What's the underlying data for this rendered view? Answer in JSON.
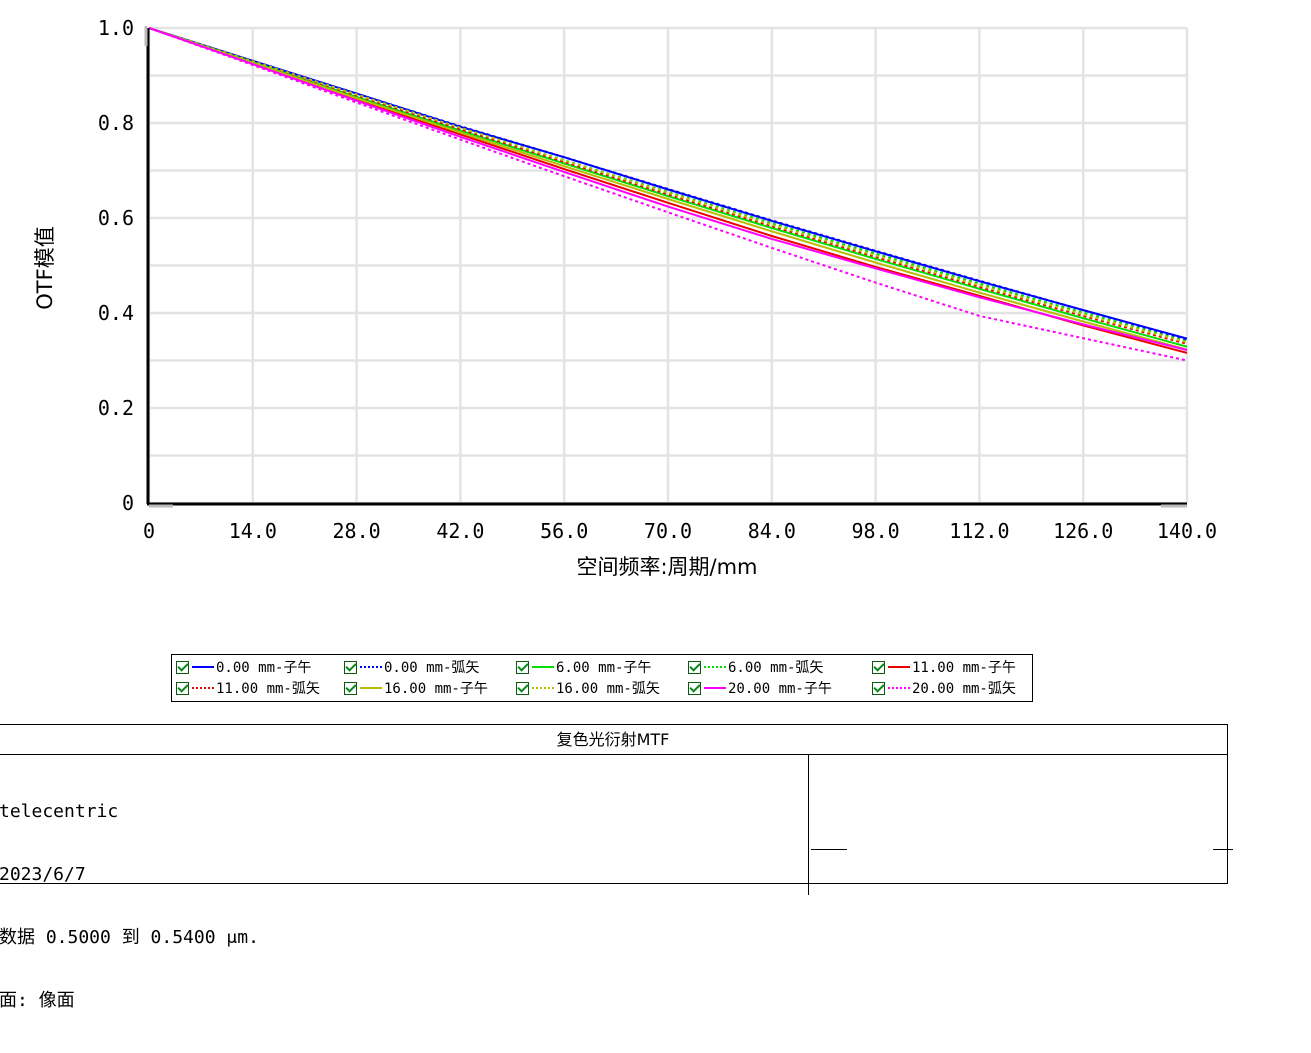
{
  "chart_data": {
    "type": "line",
    "title": "",
    "xlabel": "空间频率:周期/mm",
    "ylabel": "OTF模值",
    "xlim": [
      0,
      140
    ],
    "ylim": [
      0,
      1
    ],
    "x_ticks": [
      "0",
      "14.0",
      "28.0",
      "42.0",
      "56.0",
      "70.0",
      "84.0",
      "98.0",
      "112.0",
      "126.0",
      "140.0"
    ],
    "y_ticks": [
      "0",
      "0.2",
      "0.4",
      "0.6",
      "0.8",
      "1.0"
    ],
    "grid": true,
    "legend_position": "bottom",
    "x": [
      0,
      14,
      28,
      42,
      56,
      70,
      84,
      98,
      112,
      126,
      140
    ],
    "series": [
      {
        "name": "0.00 mm-子午",
        "color": "#0000ff",
        "dash": "solid",
        "values": [
          1.0,
          0.931,
          0.862,
          0.792,
          0.728,
          0.66,
          0.594,
          0.53,
          0.467,
          0.406,
          0.346
        ]
      },
      {
        "name": "0.00 mm-弧矢",
        "color": "#0000ff",
        "dash": "dotted",
        "values": [
          1.0,
          0.931,
          0.862,
          0.793,
          0.728,
          0.661,
          0.595,
          0.531,
          0.468,
          0.406,
          0.344
        ]
      },
      {
        "name": "6.00 mm-子午",
        "color": "#00dd00",
        "dash": "solid",
        "values": [
          1.0,
          0.928,
          0.855,
          0.784,
          0.715,
          0.646,
          0.579,
          0.514,
          0.451,
          0.389,
          0.329
        ]
      },
      {
        "name": "6.00 mm-弧矢",
        "color": "#00dd00",
        "dash": "dotted",
        "values": [
          1.0,
          0.93,
          0.86,
          0.79,
          0.722,
          0.655,
          0.589,
          0.525,
          0.462,
          0.401,
          0.34
        ]
      },
      {
        "name": "11.00 mm-子午",
        "color": "#ee0000",
        "dash": "solid",
        "values": [
          1.0,
          0.925,
          0.85,
          0.776,
          0.703,
          0.632,
          0.562,
          0.497,
          0.436,
          0.374,
          0.316
        ]
      },
      {
        "name": "11.00 mm-弧矢",
        "color": "#ee0000",
        "dash": "dotted",
        "values": [
          1.0,
          0.929,
          0.858,
          0.787,
          0.718,
          0.65,
          0.583,
          0.518,
          0.455,
          0.394,
          0.335
        ]
      },
      {
        "name": "16.00 mm-子午",
        "color": "#bbbb00",
        "dash": "solid",
        "values": [
          1.0,
          0.926,
          0.852,
          0.78,
          0.709,
          0.64,
          0.572,
          0.506,
          0.443,
          0.382,
          0.323
        ]
      },
      {
        "name": "16.00 mm-弧矢",
        "color": "#bbbb00",
        "dash": "dotted",
        "values": [
          1.0,
          0.93,
          0.86,
          0.79,
          0.721,
          0.653,
          0.586,
          0.521,
          0.458,
          0.397,
          0.338
        ]
      },
      {
        "name": "20.00 mm-子午",
        "color": "#ff00ff",
        "dash": "solid",
        "values": [
          1.0,
          0.924,
          0.847,
          0.771,
          0.697,
          0.624,
          0.556,
          0.494,
          0.433,
          0.376,
          0.322
        ]
      },
      {
        "name": "20.00 mm-弧矢",
        "color": "#ff00ff",
        "dash": "dotted",
        "values": [
          1.0,
          0.922,
          0.843,
          0.765,
          0.688,
          0.612,
          0.537,
          0.464,
          0.394,
          0.347,
          0.3
        ]
      }
    ]
  },
  "info": {
    "title": "复色光衍射MTF",
    "lines": [
      "telecentric",
      "2023/6/7",
      "数据 0.5000 到 0.5400 μm.",
      "面: 像面"
    ]
  }
}
